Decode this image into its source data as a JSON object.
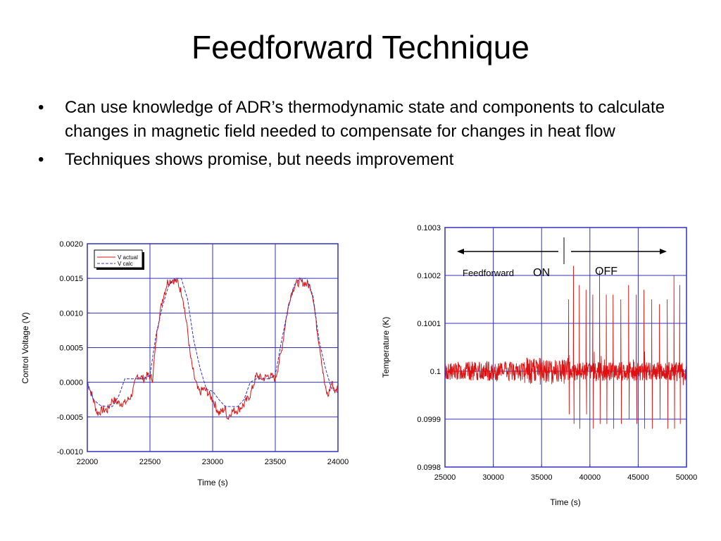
{
  "slide": {
    "title": "Feedforward Technique",
    "bullets": [
      "Can use knowledge of ADR’s thermodynamic state and components to calculate changes in magnetic field needed to compensate for changes in heat flow",
      "Techniques shows promise, but needs improvement"
    ],
    "bullet_glyph": "•"
  },
  "colors": {
    "grid": "#3030c0",
    "actual": "#dd1111",
    "calc": "#3333cc"
  },
  "chart_data": [
    {
      "type": "line",
      "xlabel": "Time (s)",
      "ylabel": "Control Voltage (V)",
      "xlim": [
        22000,
        24000
      ],
      "ylim": [
        -0.001,
        0.002
      ],
      "x_ticks": [
        "22000",
        "22500",
        "23000",
        "23500",
        "24000"
      ],
      "y_ticks": [
        "0.0020",
        "0.0015",
        "0.0010",
        "0.0005",
        "0.0000",
        "-0.0005",
        "-0.0010"
      ],
      "legend": {
        "placement": "top-left",
        "entries": [
          "V actual",
          "V calc"
        ]
      },
      "series": [
        {
          "name": "V actual",
          "color": "#dd1111",
          "x": [
            22000,
            22040,
            22080,
            22120,
            22160,
            22200,
            22250,
            22300,
            22350,
            22400,
            22450,
            22480,
            22520,
            22560,
            22600,
            22640,
            22680,
            22720,
            22760,
            22800,
            22820,
            22850,
            22880,
            22900,
            22920,
            22950,
            23000,
            23050,
            23100,
            23120,
            23150,
            23200,
            23250,
            23300,
            23350,
            23400,
            23450,
            23500,
            23550,
            23580,
            23620,
            23660,
            23700,
            23740,
            23780,
            23800,
            23830,
            23860,
            23880,
            23900,
            23920,
            23950,
            23980,
            24000
          ],
          "y": [
            0.0,
            -0.0002,
            -0.00045,
            -0.0004,
            -0.0004,
            -0.00025,
            -0.0003,
            -0.0003,
            -0.0002,
            0.0001,
            5e-05,
            0.0001,
            5e-05,
            0.0008,
            0.0012,
            0.00145,
            0.00148,
            0.00145,
            0.00125,
            0.00075,
            0.0004,
            0.0001,
            -0.0001,
            -0.00015,
            -0.0001,
            -0.00012,
            -0.00025,
            -0.00045,
            -0.00038,
            -0.00052,
            -0.00042,
            -0.0004,
            -0.00032,
            -0.00018,
            0.0001,
            5e-05,
            0.0001,
            5e-05,
            0.00045,
            0.00085,
            0.00125,
            0.00142,
            0.00145,
            0.00143,
            0.00138,
            0.00125,
            0.0008,
            0.00045,
            0.00015,
            -0.0001,
            -0.0002,
            0.0,
            -0.00015,
            -5e-05
          ]
        },
        {
          "name": "V calc",
          "color": "#3333cc",
          "x": [
            22000,
            22050,
            22100,
            22150,
            22200,
            22250,
            22300,
            22350,
            22400,
            22450,
            22500,
            22550,
            22600,
            22650,
            22700,
            22750,
            22800,
            22850,
            22900,
            22950,
            23000,
            23050,
            23100,
            23150,
            23200,
            23250,
            23300,
            23350,
            23400,
            23450,
            23500,
            23550,
            23600,
            23650,
            23700,
            23750,
            23800,
            23850,
            23900,
            23950,
            24000
          ],
          "y": [
            0.0,
            -0.00025,
            -0.00033,
            -0.00035,
            -0.00035,
            -0.0002,
            5e-05,
            5e-05,
            5e-05,
            5e-05,
            0.0001,
            0.0007,
            0.0011,
            0.0014,
            0.0015,
            0.0015,
            0.0012,
            0.0006,
            0.0002,
            -0.0001,
            -0.00013,
            -0.00025,
            -0.00035,
            -0.00035,
            -0.00035,
            -0.00025,
            0.0,
            5e-05,
            5e-05,
            5e-05,
            0.0001,
            0.0006,
            0.00105,
            0.0014,
            0.0015,
            0.0015,
            0.00125,
            0.0006,
            0.0002,
            -0.0001,
            -0.00015
          ]
        }
      ]
    },
    {
      "type": "line",
      "xlabel": "Time (s)",
      "ylabel": "Temperature (K)",
      "xlim": [
        25000,
        50000
      ],
      "ylim": [
        0.0998,
        0.1003
      ],
      "x_ticks": [
        "25000",
        "30000",
        "35000",
        "40000",
        "45000",
        "50000"
      ],
      "y_ticks": [
        "0.1003",
        "0.1002",
        "0.1001",
        "0.1",
        "0.0999",
        "0.0998"
      ],
      "annotations": [
        "Feedforward",
        "ON",
        "OFF"
      ],
      "switch_time": 37500,
      "noise_amplitude": 2e-05,
      "series": [
        {
          "color": "#dd1111",
          "baseline": 0.1,
          "spike_x": [
            37800,
            38300,
            38900,
            39600,
            40300,
            41000,
            41700,
            42400,
            43200,
            44000,
            44800,
            45600,
            46400,
            47200,
            48000,
            48700,
            49300
          ],
          "spike_peak": [
            0.10015,
            0.10022,
            0.10018,
            0.10017,
            0.10016,
            0.10021,
            0.10016,
            0.10016,
            0.10015,
            0.10018,
            0.10016,
            0.10017,
            0.10015,
            0.10014,
            0.10015,
            0.1002,
            0.10018
          ],
          "spike_trough": [
            0.09991,
            0.09989,
            0.09988,
            0.09991,
            0.09988,
            0.09989,
            0.09989,
            0.09988,
            0.09989,
            0.0999,
            0.09989,
            0.09988,
            0.09988,
            0.0999,
            0.09988,
            0.09988,
            0.09989
          ]
        }
      ]
    }
  ]
}
